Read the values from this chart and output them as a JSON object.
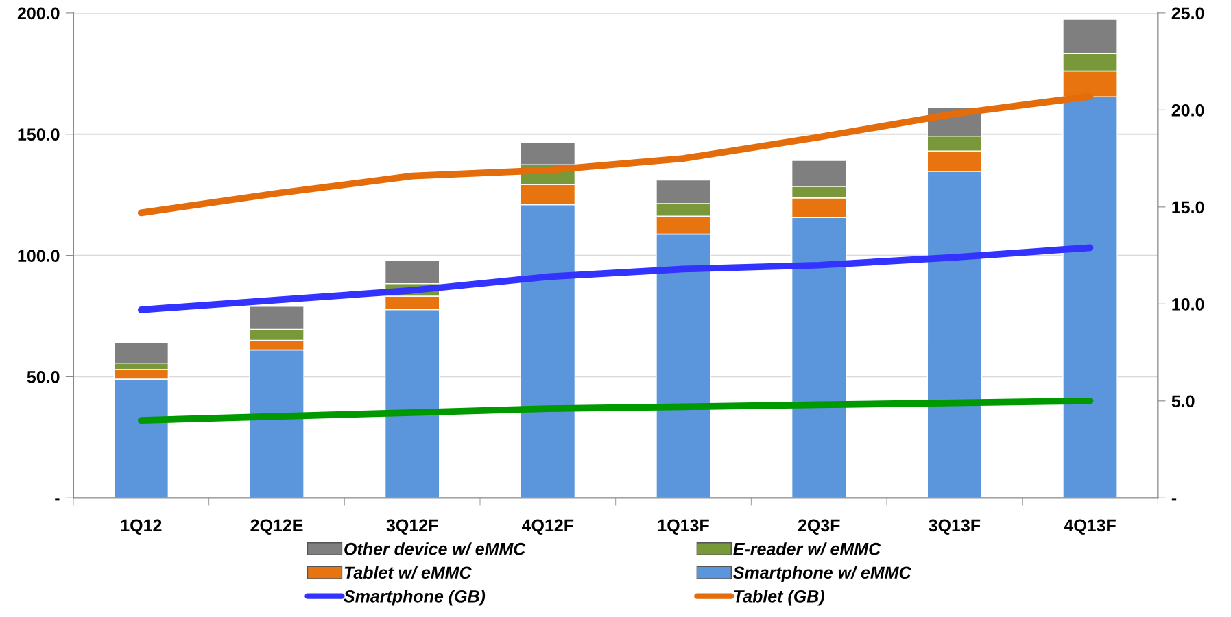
{
  "chart_data": {
    "type": "bar",
    "stacked": true,
    "categories": [
      "1Q12",
      "2Q12E",
      "3Q12F",
      "4Q12F",
      "1Q13F",
      "2Q3F",
      "3Q13F",
      "4Q13F"
    ],
    "series": [
      {
        "name": "Smartphone w/ eMMC",
        "color": "#5b96dc",
        "values": [
          49.0,
          61.0,
          77.7,
          120.9,
          108.8,
          115.6,
          134.7,
          165.4
        ]
      },
      {
        "name": "Tablet w/ eMMC",
        "color": "#e8740f",
        "values": [
          4.0,
          4.0,
          5.5,
          8.4,
          7.4,
          8.1,
          8.4,
          10.7
        ]
      },
      {
        "name": "E-reader w/ eMMC",
        "color": "#78983a",
        "values": [
          2.6,
          4.5,
          5.2,
          8.1,
          5.2,
          4.8,
          6.1,
          7.1
        ]
      },
      {
        "name": "Other device w/ eMMC",
        "color": "#7f7f7f",
        "values": [
          8.4,
          9.5,
          9.7,
          9.3,
          9.7,
          10.7,
          11.7,
          14.2
        ]
      },
      {
        "name": "Smartphone (GB)",
        "type": "line",
        "axis": "y2",
        "color": "#3333ff",
        "values": [
          9.7,
          10.2,
          10.7,
          11.4,
          11.8,
          12.0,
          12.4,
          12.9
        ]
      },
      {
        "name": "Tablet (GB)",
        "type": "line",
        "axis": "y2",
        "color": "#e46c0a",
        "values": [
          14.7,
          15.7,
          16.6,
          16.9,
          17.5,
          18.6,
          19.8,
          20.7
        ]
      },
      {
        "type": "line",
        "axis": "y2",
        "color": "#009900",
        "values": [
          4.0,
          4.2,
          4.4,
          4.6,
          4.7,
          4.8,
          4.9,
          5.0
        ]
      }
    ],
    "ylim": [
      0,
      200
    ],
    "yticks": [
      {
        "value": 0,
        "label": "-"
      },
      {
        "value": 50,
        "label": "50.0"
      },
      {
        "value": 100,
        "label": "100.0"
      },
      {
        "value": 150,
        "label": "150.0"
      },
      {
        "value": 200,
        "label": "200.0"
      }
    ],
    "y2lim": [
      0,
      25
    ],
    "y2ticks": [
      {
        "value": 0,
        "label": "-"
      },
      {
        "value": 5,
        "label": "5.0"
      },
      {
        "value": 10,
        "label": "10.0"
      },
      {
        "value": 15,
        "label": "15.0"
      },
      {
        "value": 20,
        "label": "20.0"
      },
      {
        "value": 25,
        "label": "25.0"
      }
    ],
    "grid": "y",
    "legend": "bottom",
    "line_style": "solid"
  }
}
